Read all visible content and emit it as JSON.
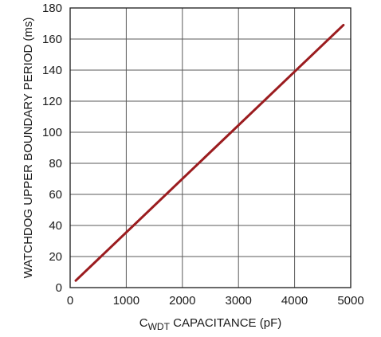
{
  "chart_data": {
    "type": "line",
    "xlabel": {
      "prefix": "C",
      "subscript": "WDT",
      "suffix": " CAPACITANCE (pF)"
    },
    "ylabel": "WATCHDOG UPPER BOUNDARY PERIOD (ms)",
    "xlim": [
      0,
      5000
    ],
    "ylim": [
      0,
      180
    ],
    "xticks": [
      0,
      1000,
      2000,
      3000,
      4000,
      5000
    ],
    "yticks": [
      0,
      20,
      40,
      60,
      80,
      100,
      120,
      140,
      160,
      180
    ],
    "grid": true,
    "series": [
      {
        "color": "#9b1c1f",
        "x": [
          100,
          4870
        ],
        "y": [
          4.5,
          169
        ]
      }
    ]
  }
}
